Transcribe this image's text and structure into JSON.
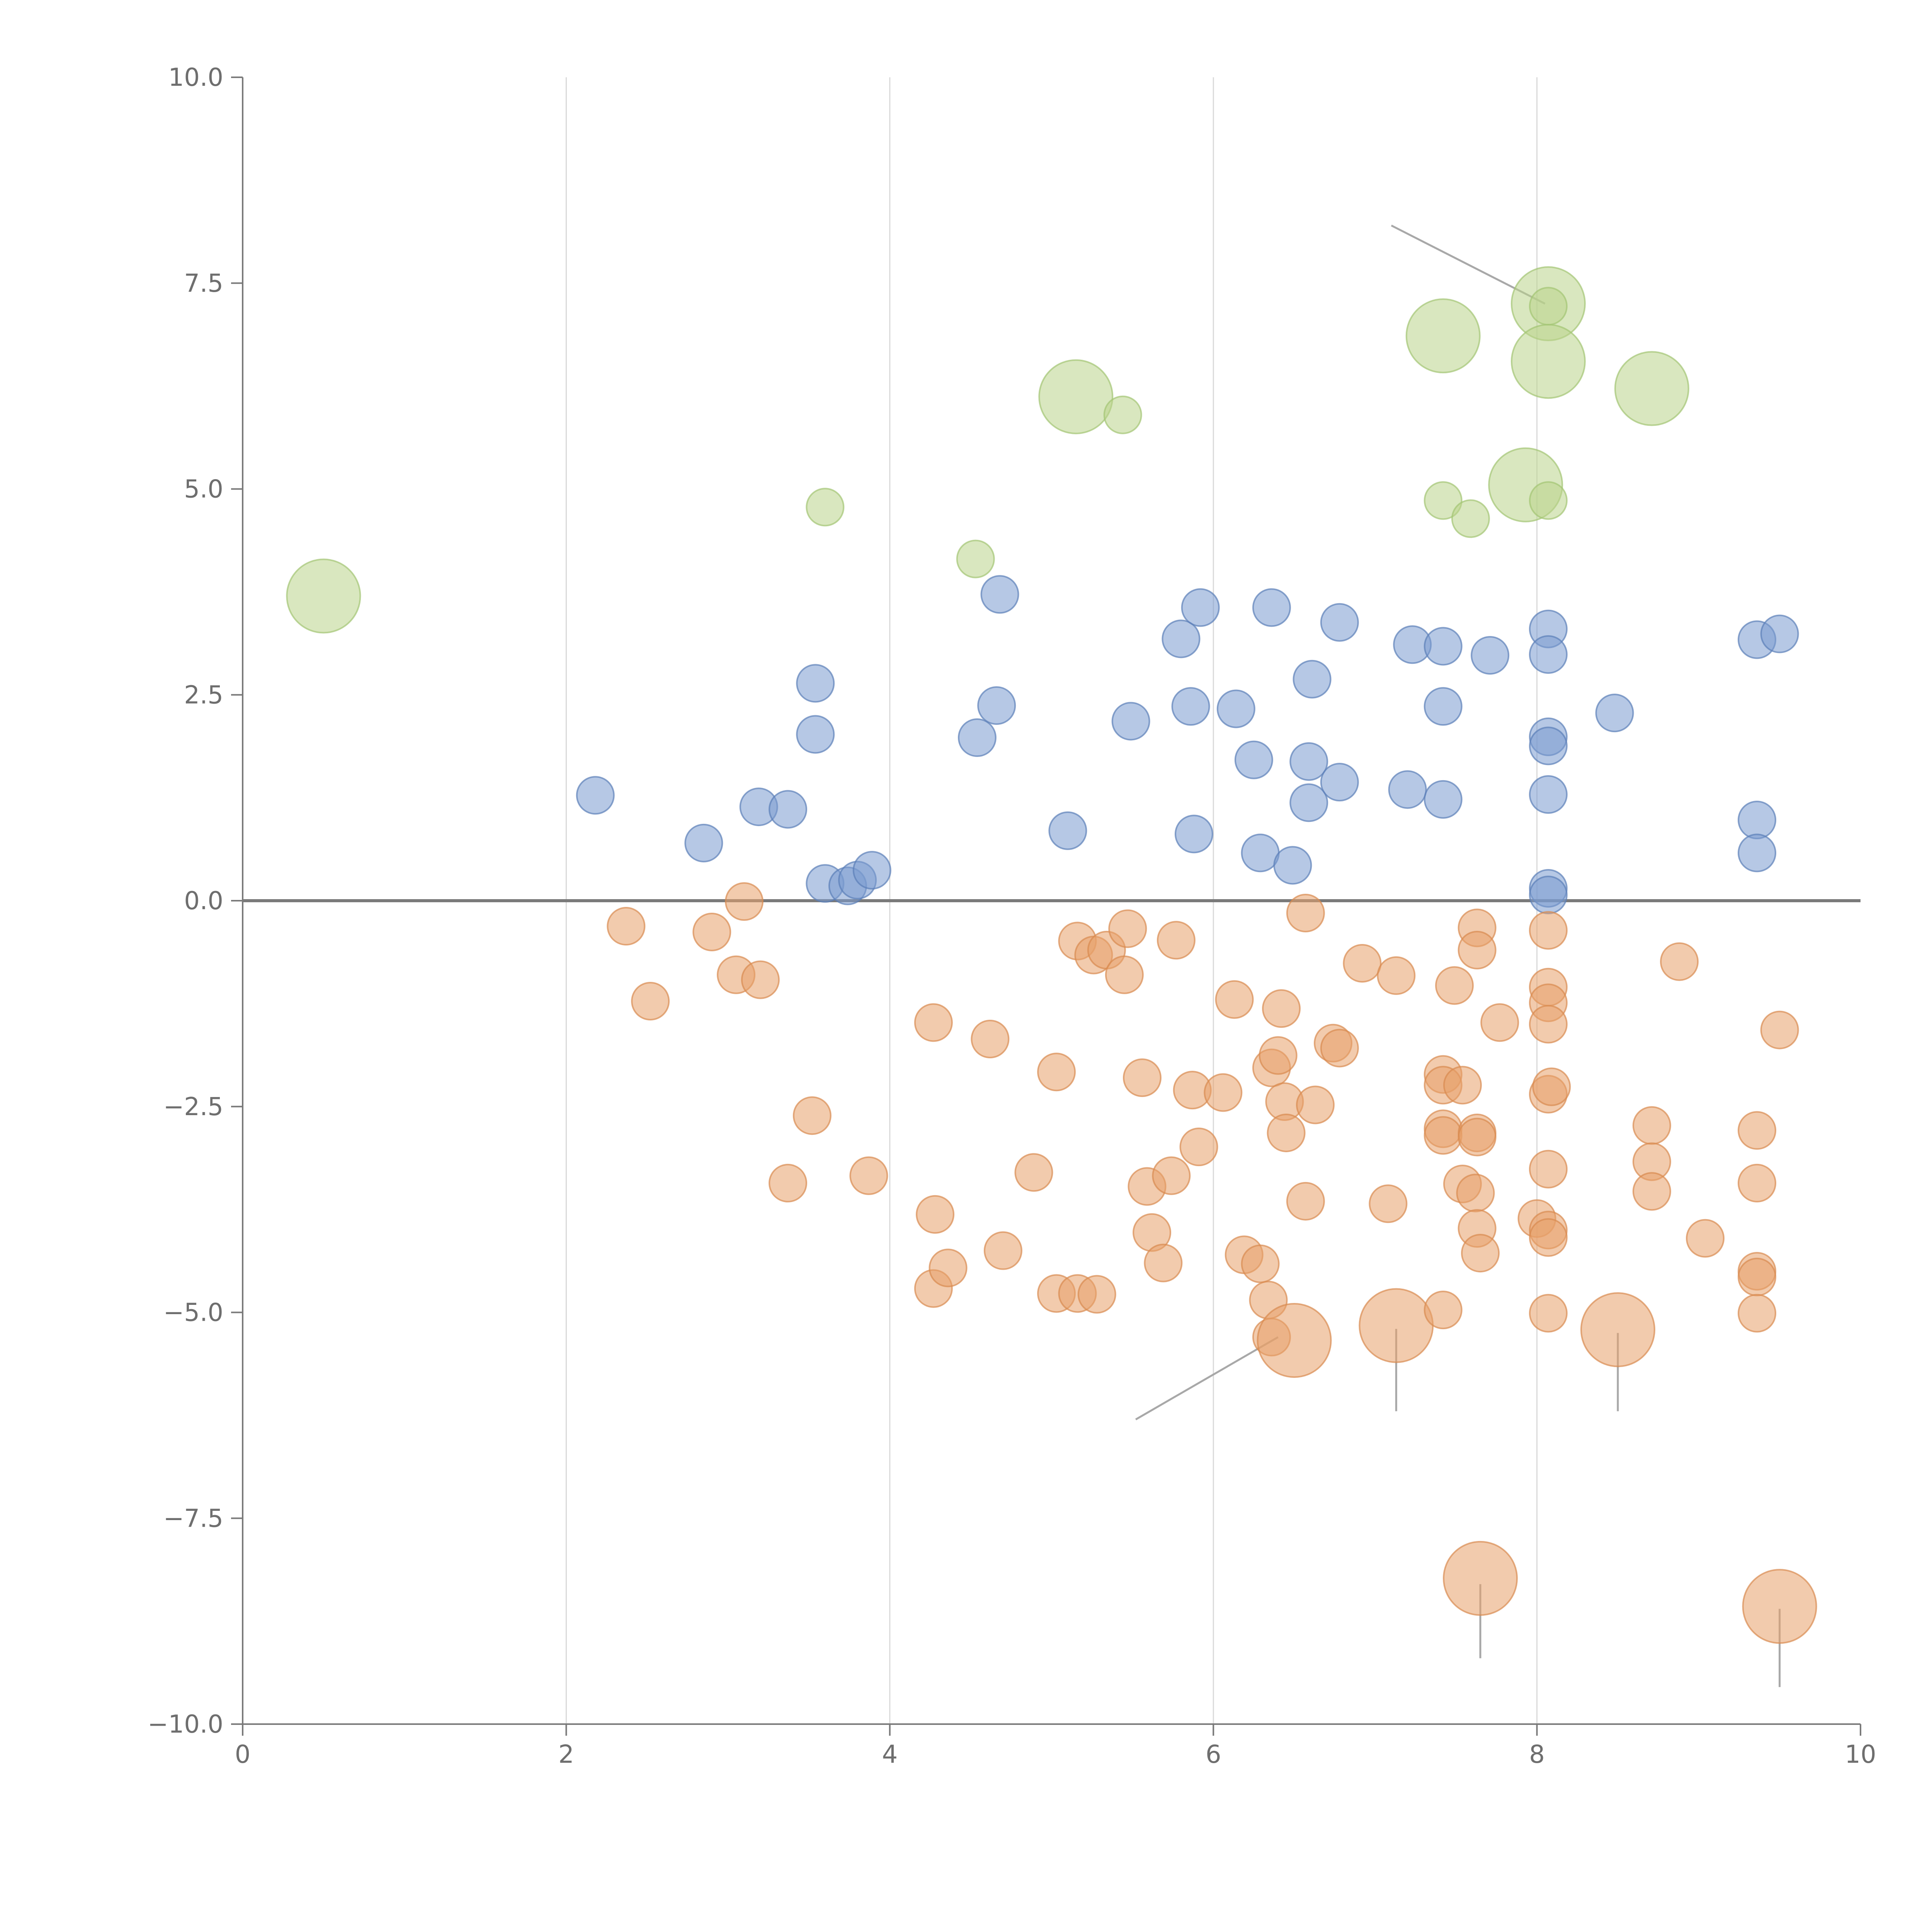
{
  "chart_data": {
    "type": "scatter",
    "title": "",
    "xlabel": "",
    "ylabel": "",
    "xlim": [
      0,
      10
    ],
    "ylim": [
      -10,
      10
    ],
    "grid": "vertical",
    "x_ticks": [
      "0",
      "2",
      "4",
      "6",
      "8",
      "10"
    ],
    "y_ticks": [
      "10.0",
      "7.5",
      "5.0",
      "2.5",
      "0.0",
      "−2.5",
      "−5.0",
      "−7.5",
      "−10.0"
    ],
    "x_tick_values": [
      0,
      2,
      4,
      6,
      8,
      10
    ],
    "y_tick_values": [
      10,
      7.5,
      5,
      2.5,
      0,
      -2.5,
      -5,
      -7.5,
      -10
    ],
    "series": [
      {
        "name": "blue",
        "color": "#7a9bcf",
        "stroke": "#5b7fb8",
        "points": [
          [
            2.18,
            1.28,
            1
          ],
          [
            2.85,
            0.7,
            1
          ],
          [
            3.19,
            1.14,
            1
          ],
          [
            3.37,
            1.11,
            1
          ],
          [
            3.54,
            2.64,
            1
          ],
          [
            3.54,
            2.02,
            1
          ],
          [
            3.6,
            0.21,
            1
          ],
          [
            3.74,
            0.18,
            1
          ],
          [
            3.8,
            0.25,
            1
          ],
          [
            3.89,
            0.37,
            1
          ],
          [
            4.54,
            1.98,
            1
          ],
          [
            4.66,
            2.37,
            1
          ],
          [
            4.68,
            3.72,
            1
          ],
          [
            5.1,
            0.85,
            1
          ],
          [
            5.49,
            2.18,
            1
          ],
          [
            5.8,
            3.18,
            1
          ],
          [
            5.86,
            2.36,
            1
          ],
          [
            5.88,
            0.81,
            1
          ],
          [
            5.92,
            3.56,
            1
          ],
          [
            6.14,
            2.33,
            1
          ],
          [
            6.25,
            1.71,
            1
          ],
          [
            6.29,
            0.58,
            1
          ],
          [
            6.36,
            3.56,
            1
          ],
          [
            6.49,
            0.43,
            1
          ],
          [
            6.59,
            1.69,
            1
          ],
          [
            6.59,
            1.19,
            1
          ],
          [
            6.61,
            2.69,
            1
          ],
          [
            6.78,
            1.44,
            1
          ],
          [
            6.78,
            3.38,
            1
          ],
          [
            7.2,
            1.35,
            1
          ],
          [
            7.23,
            3.11,
            1
          ],
          [
            7.42,
            3.09,
            1
          ],
          [
            7.42,
            2.36,
            1
          ],
          [
            7.42,
            1.23,
            1
          ],
          [
            7.71,
            2.98,
            1
          ],
          [
            8.07,
            3.3,
            1
          ],
          [
            8.07,
            2.99,
            1
          ],
          [
            8.07,
            1.99,
            1
          ],
          [
            8.07,
            1.88,
            1
          ],
          [
            8.07,
            1.29,
            1
          ],
          [
            8.07,
            0.15,
            1
          ],
          [
            8.07,
            0.07,
            1
          ],
          [
            8.48,
            2.28,
            1
          ],
          [
            9.36,
            3.17,
            1
          ],
          [
            9.36,
            0.98,
            1
          ],
          [
            9.36,
            0.58,
            1
          ],
          [
            9.5,
            3.24,
            1
          ]
        ]
      },
      {
        "name": "orange",
        "color": "#e8a06a",
        "stroke": "#d88a50",
        "points": [
          [
            2.37,
            -0.31,
            1
          ],
          [
            2.52,
            -1.22,
            1
          ],
          [
            2.9,
            -0.38,
            1
          ],
          [
            3.05,
            -0.9,
            1
          ],
          [
            3.1,
            -0.01,
            1
          ],
          [
            3.2,
            -0.96,
            1
          ],
          [
            3.37,
            -3.43,
            1
          ],
          [
            3.52,
            -2.61,
            1
          ],
          [
            3.87,
            -3.34,
            1
          ],
          [
            4.27,
            -1.48,
            1
          ],
          [
            4.28,
            -3.81,
            1
          ],
          [
            4.27,
            -4.71,
            1
          ],
          [
            4.36,
            -4.46,
            1
          ],
          [
            4.62,
            -1.68,
            1
          ],
          [
            4.7,
            -4.25,
            1
          ],
          [
            4.89,
            -3.3,
            1
          ],
          [
            5.03,
            -2.08,
            1
          ],
          [
            5.03,
            -4.77,
            1
          ],
          [
            5.16,
            -0.49,
            1
          ],
          [
            5.16,
            -4.77,
            1
          ],
          [
            5.26,
            -0.66,
            1
          ],
          [
            5.28,
            -4.78,
            1
          ],
          [
            5.34,
            -0.6,
            1
          ],
          [
            5.45,
            -0.9,
            1
          ],
          [
            5.47,
            -0.34,
            1
          ],
          [
            5.56,
            -2.15,
            1
          ],
          [
            5.59,
            -3.47,
            1
          ],
          [
            5.62,
            -4.03,
            1
          ],
          [
            5.69,
            -4.4,
            1
          ],
          [
            5.74,
            -3.34,
            1
          ],
          [
            5.77,
            -0.48,
            1
          ],
          [
            5.87,
            -2.3,
            1
          ],
          [
            5.91,
            -2.99,
            1
          ],
          [
            6.06,
            -2.33,
            1
          ],
          [
            6.13,
            -1.2,
            1
          ],
          [
            6.19,
            -4.3,
            1
          ],
          [
            6.29,
            -4.41,
            1
          ],
          [
            6.34,
            -4.85,
            1
          ],
          [
            6.36,
            -2.03,
            1
          ],
          [
            6.36,
            -5.3,
            1
          ],
          [
            6.4,
            -1.88,
            1
          ],
          [
            6.42,
            -1.31,
            1
          ],
          [
            6.44,
            -2.44,
            1
          ],
          [
            6.45,
            -2.82,
            1
          ],
          [
            6.5,
            -5.34,
            3
          ],
          [
            6.57,
            -0.15,
            1
          ],
          [
            6.57,
            -3.65,
            1
          ],
          [
            6.63,
            -2.48,
            1
          ],
          [
            6.74,
            -1.73,
            1
          ],
          [
            6.78,
            -1.79,
            1
          ],
          [
            6.92,
            -0.76,
            1
          ],
          [
            7.08,
            -3.68,
            1
          ],
          [
            7.13,
            -0.91,
            1
          ],
          [
            7.13,
            -5.16,
            3
          ],
          [
            7.42,
            -2.11,
            1
          ],
          [
            7.42,
            -2.24,
            1
          ],
          [
            7.42,
            -2.77,
            1
          ],
          [
            7.42,
            -2.85,
            1
          ],
          [
            7.42,
            -4.97,
            1
          ],
          [
            7.49,
            -1.03,
            1
          ],
          [
            7.54,
            -2.24,
            1
          ],
          [
            7.54,
            -3.44,
            1
          ],
          [
            7.62,
            -3.55,
            1
          ],
          [
            7.63,
            -2.82,
            1
          ],
          [
            7.63,
            -2.87,
            1
          ],
          [
            7.63,
            -0.33,
            1
          ],
          [
            7.63,
            -0.6,
            1
          ],
          [
            7.63,
            -3.98,
            1
          ],
          [
            7.65,
            -4.28,
            1
          ],
          [
            7.65,
            -8.23,
            3
          ],
          [
            7.77,
            -1.48,
            1
          ],
          [
            8.0,
            -3.86,
            1
          ],
          [
            8.07,
            -0.36,
            1
          ],
          [
            8.07,
            -1.05,
            1
          ],
          [
            8.07,
            -1.24,
            1
          ],
          [
            8.07,
            -1.5,
            1
          ],
          [
            8.07,
            -2.35,
            1
          ],
          [
            8.07,
            -3.26,
            1
          ],
          [
            8.07,
            -4.0,
            1
          ],
          [
            8.07,
            -4.09,
            1
          ],
          [
            8.07,
            -5.01,
            1
          ],
          [
            8.09,
            -2.26,
            1
          ],
          [
            8.5,
            -5.21,
            3
          ],
          [
            8.71,
            -2.73,
            1
          ],
          [
            8.71,
            -3.17,
            1
          ],
          [
            8.71,
            -3.53,
            1
          ],
          [
            8.88,
            -0.74,
            1
          ],
          [
            9.04,
            -4.1,
            1
          ],
          [
            9.36,
            -2.79,
            1
          ],
          [
            9.36,
            -3.43,
            1
          ],
          [
            9.36,
            -4.5,
            1
          ],
          [
            9.36,
            -4.57,
            1
          ],
          [
            9.36,
            -5.01,
            1
          ],
          [
            9.5,
            -1.57,
            1
          ],
          [
            9.5,
            -8.57,
            3
          ]
        ]
      },
      {
        "name": "green",
        "color": "#b9d38b",
        "stroke": "#a3c474",
        "points": [
          [
            0.5,
            3.7,
            3
          ],
          [
            3.6,
            4.78,
            1
          ],
          [
            4.53,
            4.15,
            1
          ],
          [
            5.15,
            6.12,
            3
          ],
          [
            5.44,
            5.9,
            1
          ],
          [
            7.42,
            6.86,
            3
          ],
          [
            7.42,
            4.86,
            1
          ],
          [
            7.59,
            4.64,
            1
          ],
          [
            7.93,
            5.05,
            3
          ],
          [
            8.07,
            7.25,
            3
          ],
          [
            8.07,
            7.22,
            1
          ],
          [
            8.07,
            6.55,
            3
          ],
          [
            8.07,
            4.86,
            1
          ],
          [
            8.71,
            6.22,
            3
          ]
        ]
      }
    ],
    "leader_lines": [
      [
        [
          7.1,
          8.2
        ],
        [
          8.05,
          7.25
        ]
      ],
      [
        [
          5.52,
          -6.3
        ],
        [
          6.4,
          -5.3
        ]
      ],
      [
        [
          7.13,
          -5.2
        ],
        [
          7.13,
          -6.2
        ]
      ],
      [
        [
          8.5,
          -5.25
        ],
        [
          8.5,
          -6.2
        ]
      ],
      [
        [
          7.65,
          -8.3
        ],
        [
          7.65,
          -9.2
        ]
      ],
      [
        [
          9.5,
          -8.6
        ],
        [
          9.5,
          -9.55
        ]
      ]
    ]
  }
}
